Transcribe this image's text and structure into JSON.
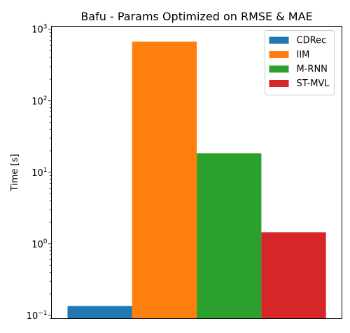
{
  "chart_data": {
    "type": "bar",
    "title": "Bafu - Params Optimized on RMSE & MAE",
    "xlabel": "",
    "ylabel": "Time [s]",
    "yscale": "log",
    "ylim": [
      0.09,
      1100
    ],
    "yticks": [
      {
        "value": 0.1,
        "base": "10",
        "exp": "−1"
      },
      {
        "value": 1,
        "base": "10",
        "exp": "0"
      },
      {
        "value": 10,
        "base": "10",
        "exp": "1"
      },
      {
        "value": 100,
        "base": "10",
        "exp": "2"
      },
      {
        "value": 1000,
        "base": "10",
        "exp": "3"
      }
    ],
    "series": [
      {
        "name": "CDRec",
        "values": [
          0.135
        ],
        "color": "#1f77b4"
      },
      {
        "name": "IIM",
        "values": [
          670
        ],
        "color": "#ff7f0e"
      },
      {
        "name": "M-RNN",
        "values": [
          18.5
        ],
        "color": "#2ca02c"
      },
      {
        "name": "ST-MVL",
        "values": [
          1.45
        ],
        "color": "#d62728"
      }
    ],
    "legend_position": "top-right",
    "grid": false
  }
}
